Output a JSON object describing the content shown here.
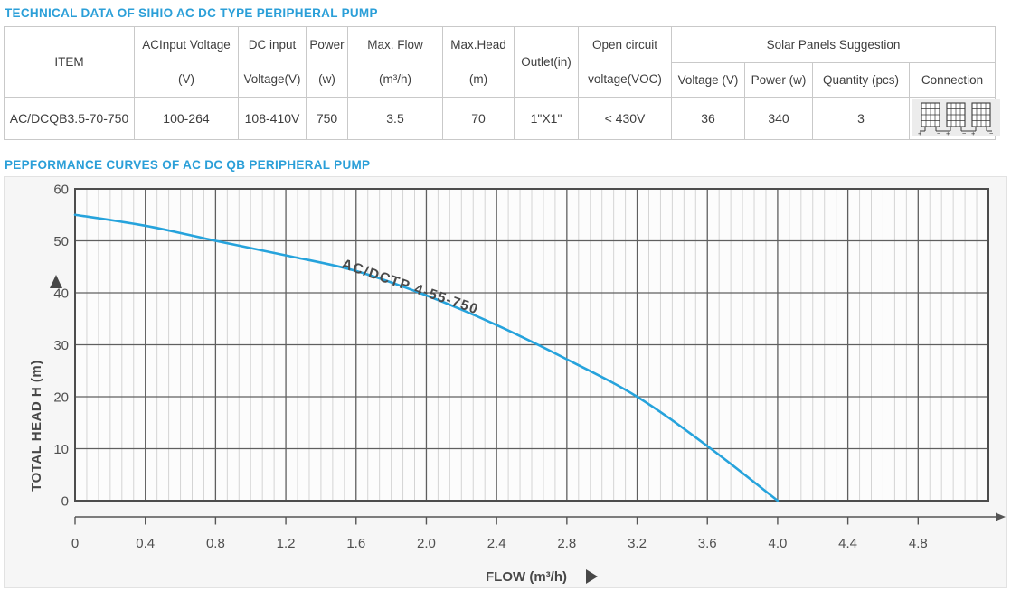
{
  "colors": {
    "accent": "#2B9FD8",
    "curve": "#26A3DC",
    "grid_major": "#5f5f5f",
    "grid_minor": "#d4d4d4",
    "axis_text": "#4f4f4f"
  },
  "section_technical": {
    "title": "TECHNICAL DATA OF SIHIO AC DC TYPE PERIPHERAL PUMP"
  },
  "table": {
    "headers": {
      "item": "ITEM",
      "ac_input_l1": "ACInput Voltage",
      "ac_input_l2": "(V)",
      "dc_input_l1": "DC input",
      "dc_input_l2": "Voltage(V)",
      "power_l1": "Power",
      "power_l2": "(w)",
      "max_flow_l1": "Max. Flow",
      "max_flow_l2": "(m³/h)",
      "max_head_l1": "Max.Head",
      "max_head_l2": "(m)",
      "outlet": "Outlet(in)",
      "open_circuit_l1": "Open circuit",
      "open_circuit_l2": "voltage(VOC)",
      "solar_group": "Solar Panels Suggestion",
      "solar_voltage": "Voltage (V)",
      "solar_power": "Power (w)",
      "solar_quantity": "Quantity (pcs)",
      "connection": "Connection"
    },
    "row": {
      "item": "AC/DCQB3.5-70-750",
      "ac_input": "100-264",
      "dc_input": "108-410V",
      "power": "750",
      "max_flow": "3.5",
      "max_head": "70",
      "outlet": "1\"X1\"",
      "open_circuit": "< 430V",
      "solar_voltage": "36",
      "solar_power": "340",
      "solar_quantity": "3",
      "connection_icon": "3 solar panels in series (+ to −)"
    }
  },
  "section_curves": {
    "title": "PEPFORMANCE CURVES OF AC DC QB PERIPHERAL PUMP"
  },
  "chart_data": {
    "type": "line",
    "title": "",
    "xlabel": "FLOW (m³/h)",
    "ylabel": "TOTAL HEAD H (m)",
    "xlim": [
      0,
      5.2
    ],
    "ylim": [
      0,
      60
    ],
    "x_ticks": [
      0,
      0.4,
      0.8,
      1.2,
      1.6,
      2.0,
      2.4,
      2.8,
      3.2,
      3.6,
      4.0,
      4.4,
      4.8
    ],
    "x_tick_labels": [
      "0",
      "0.4",
      "0.8",
      "1.2",
      "1.6",
      "2.0",
      "2.4",
      "2.8",
      "3.2",
      "3.6",
      "4.0",
      "4.4",
      "4.8"
    ],
    "y_ticks": [
      0,
      10,
      20,
      30,
      40,
      50,
      60
    ],
    "grid": {
      "major_x_step": 0.4,
      "minor_per_major_x": 6,
      "major_y_step": 10,
      "minor_y": false
    },
    "legend_position": "label-on-curve",
    "series": [
      {
        "name": "AC/DCTP 4-55-750",
        "color": "#26A3DC",
        "x": [
          0,
          0.4,
          0.8,
          1.2,
          1.6,
          2.0,
          2.4,
          2.8,
          3.2,
          3.6,
          4.0
        ],
        "y": [
          55,
          52.9,
          50.0,
          47.2,
          44.2,
          39.5,
          33.8,
          27.2,
          20.0,
          10.5,
          0
        ]
      }
    ]
  }
}
